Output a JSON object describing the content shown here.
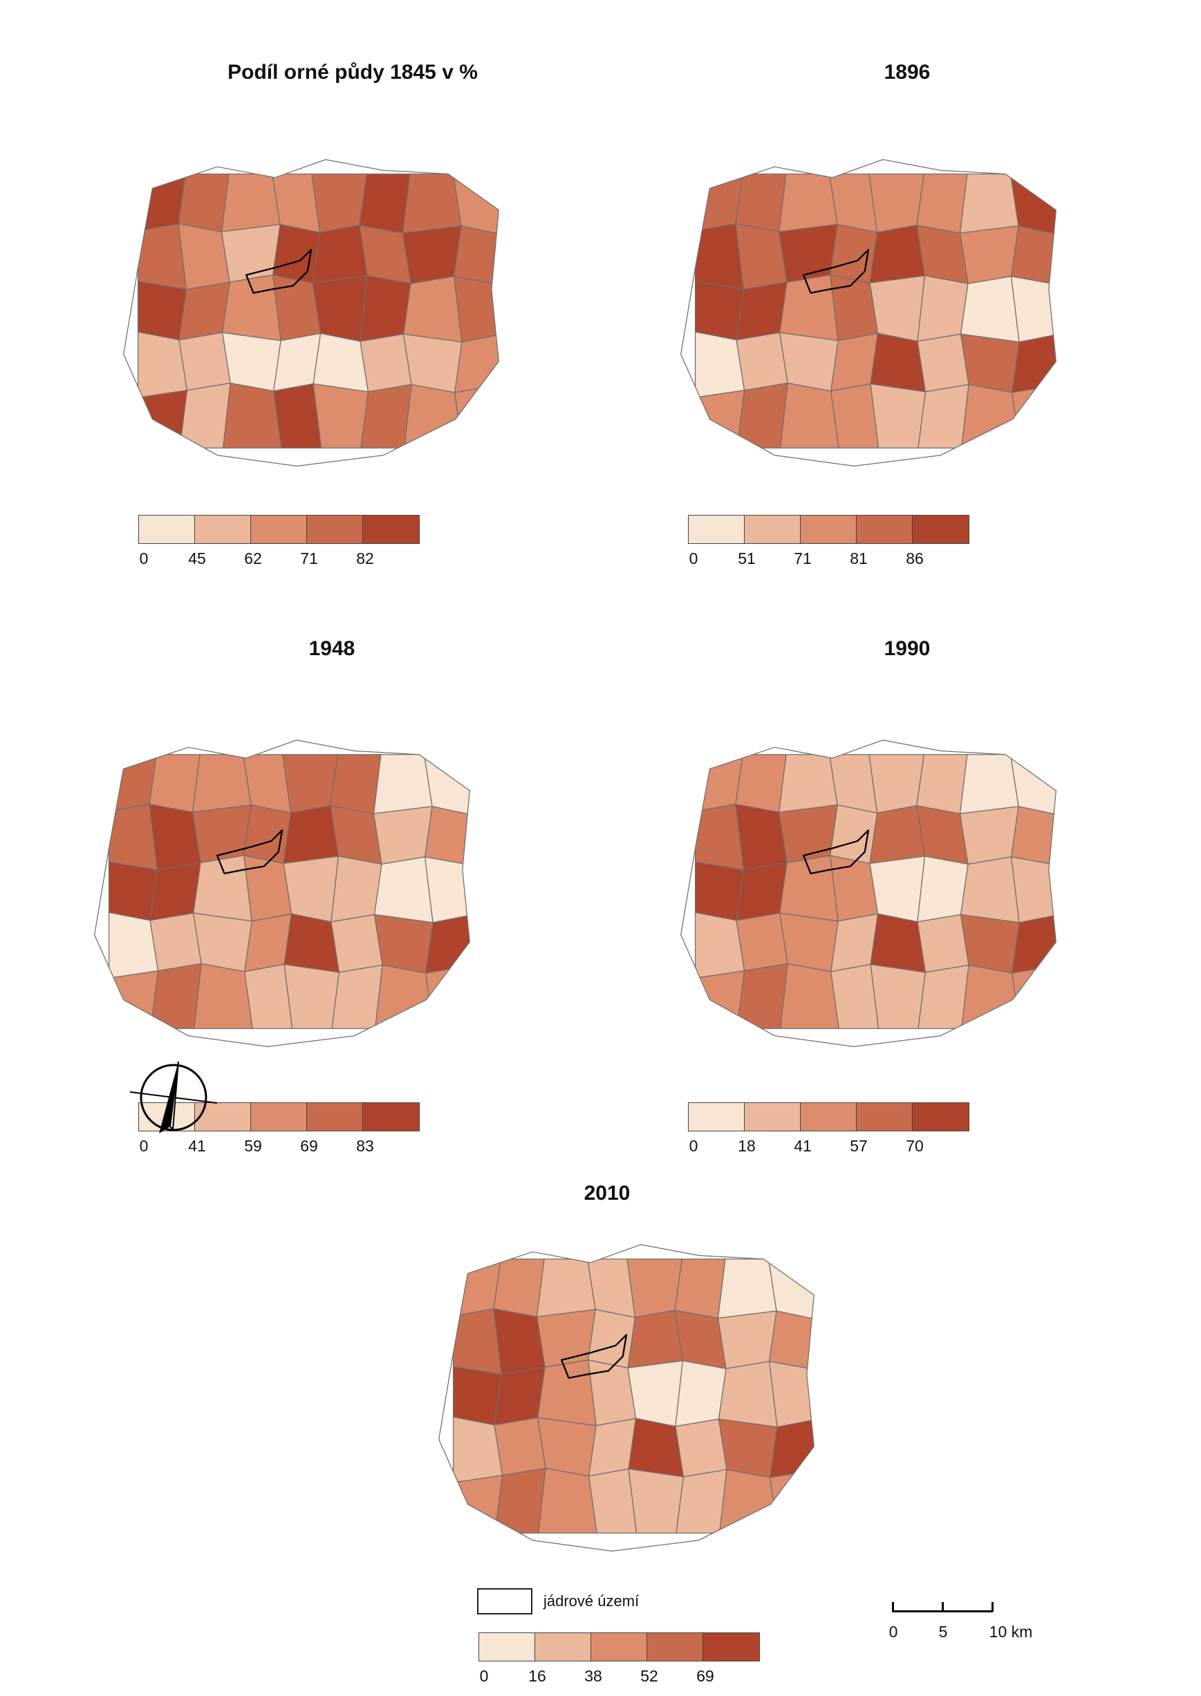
{
  "colors": [
    "#f9e5d4",
    "#ebb89b",
    "#dd8d6c",
    "#c86b4c",
    "#b0432c"
  ],
  "panels": [
    {
      "title": "Podíl orné půdy 1845 v %",
      "breaks": [
        "0",
        "45",
        "62",
        "71",
        "82"
      ],
      "class_of_region": [
        4,
        3,
        2,
        2,
        3,
        4,
        3,
        2,
        3,
        2,
        1,
        4,
        4,
        3,
        4,
        3,
        4,
        3,
        2,
        3,
        4,
        4,
        2,
        3,
        1,
        1,
        0,
        0,
        0,
        1,
        1,
        2,
        4,
        1,
        3,
        4,
        2,
        3,
        2,
        2
      ]
    },
    {
      "title": "1896",
      "breaks": [
        "0",
        "51",
        "71",
        "81",
        "86"
      ],
      "class_of_region": [
        3,
        3,
        2,
        2,
        2,
        2,
        1,
        4,
        4,
        3,
        4,
        3,
        4,
        3,
        2,
        3,
        4,
        4,
        2,
        3,
        1,
        1,
        0,
        0,
        0,
        1,
        1,
        2,
        4,
        1,
        3,
        4,
        2,
        3,
        2,
        2,
        1,
        1,
        2,
        2
      ]
    },
    {
      "title": "1948",
      "breaks": [
        "0",
        "41",
        "59",
        "69",
        "83"
      ],
      "class_of_region": [
        3,
        2,
        2,
        2,
        3,
        3,
        0,
        0,
        3,
        4,
        3,
        3,
        4,
        3,
        1,
        2,
        4,
        4,
        1,
        2,
        1,
        1,
        0,
        0,
        0,
        1,
        1,
        2,
        4,
        1,
        3,
        4,
        2,
        3,
        2,
        1,
        1,
        1,
        2,
        2
      ]
    },
    {
      "title": "1990",
      "breaks": [
        "0",
        "18",
        "41",
        "57",
        "70"
      ],
      "class_of_region": [
        2,
        2,
        1,
        1,
        1,
        1,
        0,
        0,
        3,
        4,
        3,
        1,
        3,
        3,
        1,
        2,
        4,
        4,
        2,
        2,
        0,
        0,
        1,
        1,
        1,
        2,
        2,
        1,
        4,
        1,
        3,
        4,
        2,
        3,
        2,
        1,
        1,
        1,
        2,
        2
      ]
    },
    {
      "title": "2010",
      "breaks": [
        "0",
        "16",
        "38",
        "52",
        "69"
      ],
      "class_of_region": [
        2,
        2,
        1,
        1,
        2,
        2,
        0,
        0,
        3,
        4,
        2,
        1,
        3,
        3,
        1,
        2,
        4,
        4,
        2,
        1,
        0,
        0,
        1,
        1,
        1,
        2,
        2,
        1,
        4,
        1,
        3,
        4,
        2,
        3,
        2,
        1,
        1,
        1,
        2,
        2
      ]
    }
  ],
  "legend_core_label": "jádrové území",
  "scale": {
    "ticks": [
      "0",
      "5"
    ],
    "last_label": "10 km"
  }
}
